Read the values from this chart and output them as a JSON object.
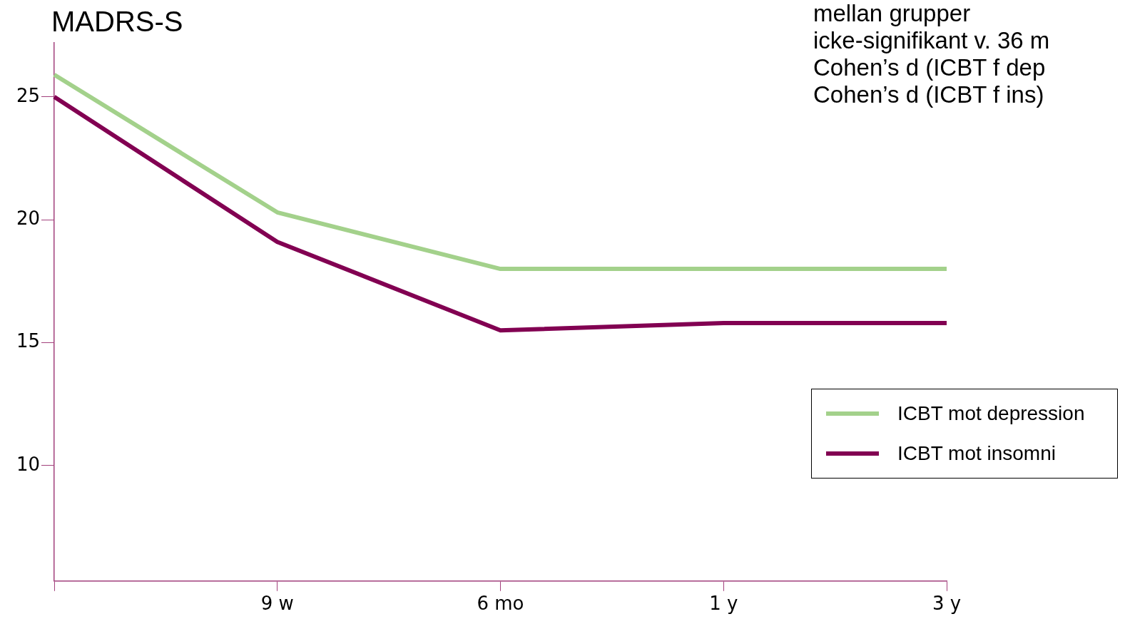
{
  "chart_data": {
    "type": "line",
    "ylabel": "MADRS-S",
    "categories": [
      null,
      "9 w",
      "6 mo",
      "1 y",
      "3 y"
    ],
    "series": [
      {
        "name": "ICBT mot depression",
        "color": "#a3d18b",
        "values": [
          25.9,
          20.3,
          18.0,
          18.0,
          18.0
        ]
      },
      {
        "name": "ICBT mot insomni",
        "color": "#820052",
        "values": [
          25.0,
          19.1,
          15.5,
          15.8,
          15.8
        ]
      }
    ],
    "ylim": [
      5.3,
      27.2
    ],
    "yticks": [
      10,
      15,
      20,
      25
    ],
    "grid": false,
    "legend": "right",
    "marker": "none",
    "line_style": "solid",
    "annotations": [
      "mellan grupper",
      "icke-signifikant v. 36 m",
      "Cohen’s d (ICBT f dep",
      "Cohen’s d (ICBT f ins)"
    ]
  }
}
